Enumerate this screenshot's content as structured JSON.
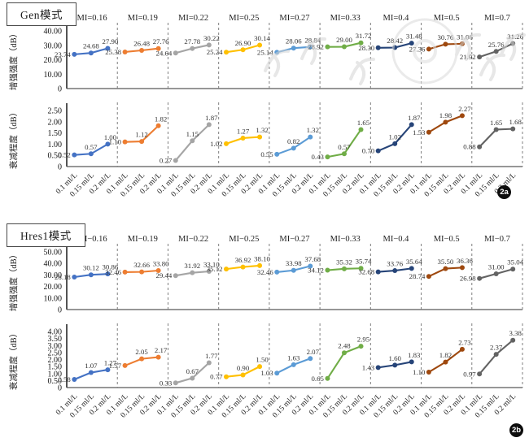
{
  "figure": {
    "series_colors": [
      "#4472c4",
      "#ed7d31",
      "#a5a5a5",
      "#ffc000",
      "#5b9bd5",
      "#70ad47",
      "#264478",
      "#9e480e",
      "#636363"
    ]
  },
  "chart_data": [
    {
      "type": "line",
      "panel_label": "Gen模式",
      "badge": "2a",
      "categories": [
        "0.1 ml/L",
        "0.15 ml/L",
        "0.2 ml/L"
      ],
      "group_titles": [
        "MI=0.16",
        "MI=0.19",
        "MI=0.22",
        "MI=0.25",
        "MI=0.27",
        "MI=0.33",
        "MI=0.4",
        "MI=0.5",
        "MI=0.7"
      ],
      "subcharts": [
        {
          "ylabel": "增强强度（dB）",
          "ylim": [
            0,
            40
          ],
          "yticks": [
            "40.00",
            "30.00",
            "20.00",
            "10.00",
            "0"
          ],
          "grid": false,
          "legend": "none",
          "series": [
            {
              "name": "MI=0.16",
              "values": [
                23.74,
                24.68,
                27.9
              ]
            },
            {
              "name": "MI=0.19",
              "values": [
                25.38,
                26.48,
                27.76
              ]
            },
            {
              "name": "MI=0.22",
              "values": [
                24.64,
                27.78,
                30.22
              ]
            },
            {
              "name": "MI=0.25",
              "values": [
                25.24,
                26.9,
                30.14
              ]
            },
            {
              "name": "MI=0.27",
              "values": [
                25.14,
                28.06,
                28.84
              ]
            },
            {
              "name": "MI=0.33",
              "values": [
                28.92,
                29.0,
                31.72
              ]
            },
            {
              "name": "MI=0.4",
              "values": [
                28.3,
                28.42,
                31.48
              ]
            },
            {
              "name": "MI=0.5",
              "values": [
                27.36,
                30.76,
                31.06
              ]
            },
            {
              "name": "MI=0.7",
              "values": [
                21.92,
                25.76,
                31.26
              ]
            }
          ]
        },
        {
          "ylabel": "衰减程度（dB）",
          "ylim": [
            0,
            2.5
          ],
          "yticks": [
            "2.50",
            "2.00",
            "1.50",
            "1.00",
            "0.50",
            "0"
          ],
          "grid": false,
          "legend": "none",
          "series": [
            {
              "name": "MI=0.16",
              "values": [
                0.52,
                0.57,
                1.0
              ]
            },
            {
              "name": "MI=0.19",
              "values": [
                1.1,
                1.12,
                1.82
              ]
            },
            {
              "name": "MI=0.22",
              "values": [
                0.27,
                1.15,
                1.87
              ]
            },
            {
              "name": "MI=0.25",
              "values": [
                1.02,
                1.27,
                1.32
              ]
            },
            {
              "name": "MI=0.27",
              "values": [
                0.55,
                0.82,
                1.32
              ]
            },
            {
              "name": "MI=0.33",
              "values": [
                0.43,
                0.57,
                1.65
              ]
            },
            {
              "name": "MI=0.4",
              "values": [
                0.7,
                1.02,
                1.87
              ]
            },
            {
              "name": "MI=0.5",
              "values": [
                1.53,
                1.98,
                2.27
              ]
            },
            {
              "name": "MI=0.7",
              "values": [
                0.88,
                1.65,
                1.68
              ]
            }
          ]
        }
      ]
    },
    {
      "type": "line",
      "panel_label": "Hres1模式",
      "badge": "2b",
      "categories": [
        "0.1 ml/L",
        "0.15 ml/L",
        "0.2 ml/L"
      ],
      "group_titles": [
        "MI−0.16",
        "MI−0.19",
        "MI−0.22",
        "MI−0.25",
        "MI−0.27",
        "MI−0.33",
        "MI−0.4",
        "MI−0.5",
        "MI−0.7"
      ],
      "subcharts": [
        {
          "ylabel": "增强强度（dB）",
          "ylim": [
            0,
            50
          ],
          "yticks": [
            "50.00",
            "40.00",
            "30.00",
            "20.00",
            "10.00",
            "0"
          ],
          "grid": false,
          "legend": "none",
          "series": [
            {
              "name": "MI−0.16",
              "values": [
                28.18,
                30.12,
                30.86
              ]
            },
            {
              "name": "MI−0.19",
              "values": [
                32.46,
                32.66,
                33.8
              ]
            },
            {
              "name": "MI−0.22",
              "values": [
                29.44,
                31.92,
                33.1
              ]
            },
            {
              "name": "MI−0.25",
              "values": [
                35.12,
                36.92,
                38.1
              ]
            },
            {
              "name": "MI−0.27",
              "values": [
                32.46,
                33.98,
                37.68
              ]
            },
            {
              "name": "MI−0.33",
              "values": [
                34.12,
                35.32,
                35.74
              ]
            },
            {
              "name": "MI−0.4",
              "values": [
                32.68,
                33.76,
                35.64
              ]
            },
            {
              "name": "MI−0.5",
              "values": [
                28.74,
                35.5,
                36.36
              ]
            },
            {
              "name": "MI−0.7",
              "values": [
                26.98,
                31.0,
                35.04
              ]
            }
          ]
        },
        {
          "ylabel": "衰减程度（dB）",
          "ylim": [
            0,
            4
          ],
          "yticks": [
            "4.00",
            "3.50",
            "3.00",
            "2.50",
            "2.00",
            "1.50",
            "1.00",
            "0.50",
            "0"
          ],
          "grid": false,
          "legend": "none",
          "series": [
            {
              "name": "MI−0.16",
              "values": [
                0.58,
                1.07,
                1.27
              ]
            },
            {
              "name": "MI−0.19",
              "values": [
                1.57,
                2.05,
                2.17
              ]
            },
            {
              "name": "MI−0.22",
              "values": [
                0.33,
                0.67,
                1.77
              ]
            },
            {
              "name": "MI−0.25",
              "values": [
                0.77,
                0.9,
                1.5
              ]
            },
            {
              "name": "MI−0.27",
              "values": [
                1.03,
                1.63,
                2.07
              ]
            },
            {
              "name": "MI−0.33",
              "values": [
                0.65,
                2.48,
                2.95
              ]
            },
            {
              "name": "MI−0.4",
              "values": [
                1.43,
                1.6,
                1.83
              ]
            },
            {
              "name": "MI−0.5",
              "values": [
                1.1,
                1.82,
                2.73
              ]
            },
            {
              "name": "MI−0.7",
              "values": [
                0.97,
                2.37,
                3.38
              ]
            }
          ]
        }
      ]
    }
  ]
}
